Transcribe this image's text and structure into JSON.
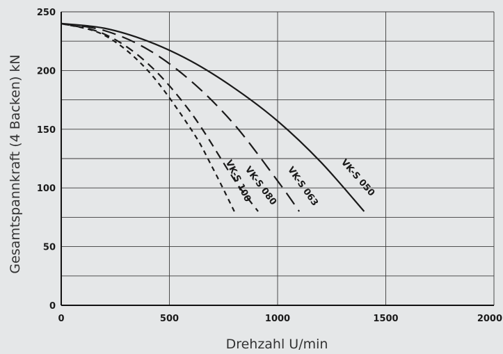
{
  "chart_data": {
    "type": "line",
    "xlabel": "Drehzahl U/min",
    "ylabel": "Gesamtspannkraft (4 Backen) kN",
    "xlim": [
      0,
      2000
    ],
    "ylim": [
      0,
      250
    ],
    "xticks": [
      0,
      500,
      1000,
      1500,
      2000
    ],
    "yticks": [
      0,
      50,
      100,
      150,
      200,
      250
    ],
    "x_tick_labels": [
      "0",
      "500",
      "1000",
      "1500",
      "2000"
    ],
    "y_tick_labels": [
      "0",
      "50",
      "100",
      "150",
      "200",
      "250"
    ],
    "grid": true,
    "minor_grid_y_step": 25,
    "series": [
      {
        "name": "VK-S 050",
        "style": "solid",
        "x": [
          0,
          200,
          400,
          600,
          800,
          1000,
          1200,
          1400
        ],
        "y": [
          240,
          236,
          225,
          208,
          185,
          157,
          122,
          80
        ]
      },
      {
        "name": "VK-S 063",
        "style": "long-dash",
        "x": [
          0,
          200,
          400,
          600,
          800,
          1000,
          1100
        ],
        "y": [
          240,
          234,
          218,
          191,
          154,
          106,
          80
        ]
      },
      {
        "name": "VK-S 080",
        "style": "dash",
        "x": [
          0,
          200,
          400,
          600,
          800,
          910
        ],
        "y": [
          240,
          231,
          206,
          164,
          107,
          80
        ]
      },
      {
        "name": "VK-S 100",
        "style": "short-dash",
        "x": [
          0,
          200,
          400,
          600,
          700,
          800
        ],
        "y": [
          240,
          230,
          200,
          150,
          117,
          80
        ]
      }
    ],
    "annotations": [
      {
        "text": "VK-S 050",
        "series": "VK-S 050"
      },
      {
        "text": "VK-S 063",
        "series": "VK-S 063"
      },
      {
        "text": "VK-S 080",
        "series": "VK-S 080"
      },
      {
        "text": "VK-S 100",
        "series": "VK-S 100"
      }
    ],
    "colors": {
      "background": "#e5e7e8",
      "grid": "#3a3a3a",
      "line": "#1a1a1a",
      "text": "#1a1a1a"
    }
  }
}
